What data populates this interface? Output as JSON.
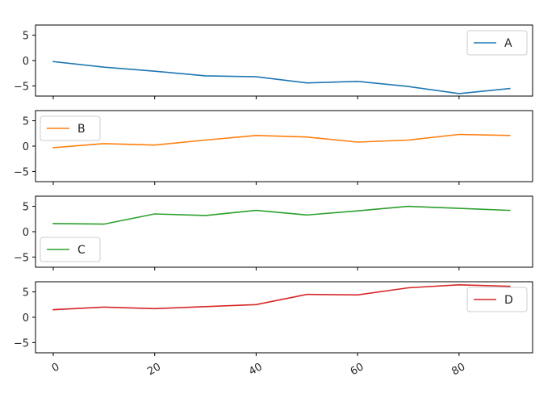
{
  "chart_data": {
    "type": "line",
    "layout": "subplots-stacked",
    "sharex": true,
    "x": [
      0,
      10,
      20,
      30,
      40,
      50,
      60,
      70,
      80,
      90
    ],
    "xlim": [
      -3.5,
      94.5
    ],
    "xticks": [
      0,
      20,
      40,
      60,
      80
    ],
    "xtick_labels": [
      "0",
      "20",
      "40",
      "60",
      "80"
    ],
    "xtick_rotation_deg": 30,
    "grid": false,
    "series": [
      {
        "name": "A",
        "color": "#1f77b4",
        "values": [
          -0.2,
          -1.3,
          -2.1,
          -3.0,
          -3.2,
          -4.4,
          -4.1,
          -5.1,
          -6.5,
          -5.5
        ],
        "ylim": [
          -7,
          7
        ],
        "yticks": [
          -5,
          0,
          5
        ],
        "ytick_labels": [
          "−5",
          "0",
          "5"
        ],
        "legend_loc": "upper right"
      },
      {
        "name": "B",
        "color": "#ff7f0e",
        "values": [
          -0.3,
          0.5,
          0.2,
          1.2,
          2.1,
          1.8,
          0.8,
          1.2,
          2.3,
          2.1
        ],
        "ylim": [
          -7,
          7
        ],
        "yticks": [
          -5,
          0,
          5
        ],
        "ytick_labels": [
          "−5",
          "0",
          "5"
        ],
        "legend_loc": "upper left"
      },
      {
        "name": "C",
        "color": "#2ca02c",
        "values": [
          1.6,
          1.5,
          3.5,
          3.2,
          4.2,
          3.3,
          4.1,
          5.0,
          4.6,
          4.2
        ],
        "ylim": [
          -7,
          7
        ],
        "yticks": [
          -5,
          0,
          5
        ],
        "ytick_labels": [
          "−5",
          "0",
          "5"
        ],
        "legend_loc": "lower left"
      },
      {
        "name": "D",
        "color": "#d62728",
        "values": [
          1.5,
          2.0,
          1.7,
          2.1,
          2.5,
          4.5,
          4.4,
          5.8,
          6.4,
          6.1
        ],
        "ylim": [
          -7,
          7
        ],
        "yticks": [
          -5,
          0,
          5
        ],
        "ytick_labels": [
          "−5",
          "0",
          "5"
        ],
        "legend_loc": "upper right"
      }
    ]
  }
}
